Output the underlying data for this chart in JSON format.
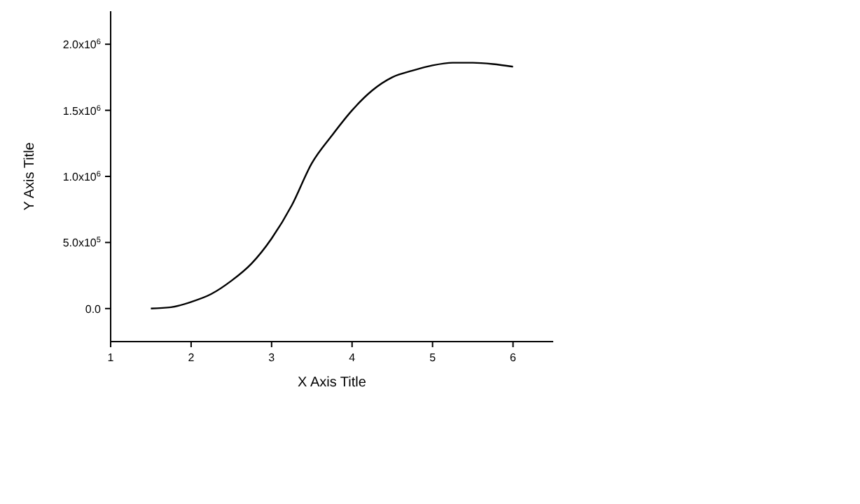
{
  "chart_data": {
    "type": "line",
    "xlabel": "X Axis Title",
    "ylabel": "Y Axis Title",
    "x": [
      1.5,
      1.75,
      2,
      2.25,
      2.5,
      2.75,
      3,
      3.25,
      3.5,
      3.75,
      4,
      4.25,
      4.5,
      4.75,
      5,
      5.25,
      5.5,
      5.75,
      6
    ],
    "series": [
      {
        "color": "#000000",
        "values": [
          0,
          10000,
          50000,
          110000,
          210000,
          340000,
          530000,
          780000,
          1100000,
          1310000,
          1500000,
          1650000,
          1750000,
          1800000,
          1840000,
          1860000,
          1860000,
          1850000,
          1830000
        ]
      }
    ],
    "xlim": [
      1,
      6.5
    ],
    "xticks": [
      1,
      2,
      3,
      4,
      5,
      6
    ],
    "ylim": [
      -250000,
      2250000
    ],
    "yticks": [
      {
        "value": 0,
        "label": "0.0"
      },
      {
        "value": 500000,
        "label": "5.0x10$^{5}$"
      },
      {
        "value": 1000000,
        "label": "1.0x10$^{6}$"
      },
      {
        "value": 1500000,
        "label": "1.5x10$^{6}$"
      },
      {
        "value": 2000000,
        "label": "2.0x10$^{6}$"
      }
    ],
    "grid": false,
    "marker": "none",
    "line_style": "solid"
  }
}
